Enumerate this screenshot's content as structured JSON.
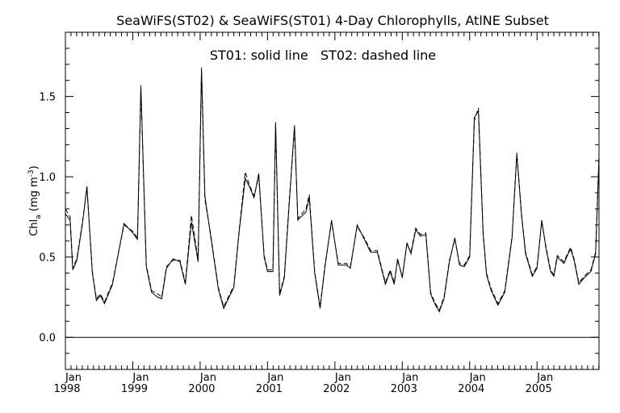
{
  "chart_data": {
    "type": "line",
    "title": "SeaWiFS(ST02) & SeaWiFS(ST01) 4-Day Chlorophylls, AtlNE Subset",
    "annotation": "ST01: solid line   ST02: dashed line",
    "ylabel": {
      "base": "Chl",
      "sub": "a",
      "mid": " (mg m",
      "sup": "-3",
      "end": ")"
    },
    "xlim": [
      1998.0,
      2005.92
    ],
    "ylim": [
      -0.2,
      1.9
    ],
    "yticks": [
      0.0,
      0.5,
      1.0,
      1.5
    ],
    "ytick_labels": [
      "0.0",
      "0.5",
      "1.0",
      "1.5"
    ],
    "xticks": [
      1998.0,
      1999.0,
      2000.0,
      2001.0,
      2002.0,
      2003.0,
      2004.0,
      2005.0
    ],
    "xtick_month_label": "Jan",
    "xtick_year_labels": [
      "1998",
      "1999",
      "2000",
      "2001",
      "2002",
      "2003",
      "2004",
      "2005"
    ],
    "reference_line_y": 0.0,
    "series": [
      {
        "name": "ST01",
        "style": "solid",
        "color": "#000000",
        "x": [
          1998.0,
          1998.07,
          1998.11,
          1998.17,
          1998.25,
          1998.32,
          1998.4,
          1998.46,
          1998.52,
          1998.58,
          1998.7,
          1998.87,
          1999.0,
          1999.07,
          1999.12,
          1999.2,
          1999.28,
          1999.37,
          1999.43,
          1999.5,
          1999.6,
          1999.7,
          1999.78,
          1999.87,
          1999.97,
          2000.02,
          2000.07,
          2000.15,
          2000.27,
          2000.35,
          2000.43,
          2000.5,
          2000.58,
          2000.67,
          2000.73,
          2000.8,
          2000.87,
          2000.95,
          2001.0,
          2001.08,
          2001.12,
          2001.18,
          2001.25,
          2001.32,
          2001.4,
          2001.45,
          2001.57,
          2001.62,
          2001.7,
          2001.78,
          2001.85,
          2001.95,
          2002.05,
          2002.17,
          2002.23,
          2002.33,
          2002.45,
          2002.53,
          2002.63,
          2002.75,
          2002.82,
          2002.88,
          2002.93,
          2003.0,
          2003.07,
          2003.13,
          2003.2,
          2003.27,
          2003.35,
          2003.42,
          2003.48,
          2003.55,
          2003.62,
          2003.7,
          2003.78,
          2003.85,
          2003.92,
          2004.0,
          2004.07,
          2004.13,
          2004.2,
          2004.25,
          2004.32,
          2004.42,
          2004.52,
          2004.63,
          2004.7,
          2004.77,
          2004.83,
          2004.93,
          2005.0,
          2005.07,
          2005.13,
          2005.2,
          2005.25,
          2005.3,
          2005.4,
          2005.45,
          2005.5,
          2005.55,
          2005.62,
          2005.7,
          2005.8,
          2005.87,
          2005.92
        ],
        "y": [
          0.77,
          0.73,
          0.42,
          0.48,
          0.7,
          0.94,
          0.4,
          0.23,
          0.26,
          0.21,
          0.33,
          0.71,
          0.65,
          0.61,
          1.57,
          0.44,
          0.28,
          0.25,
          0.24,
          0.43,
          0.49,
          0.47,
          0.33,
          0.72,
          0.47,
          1.68,
          0.88,
          0.65,
          0.3,
          0.18,
          0.25,
          0.31,
          0.66,
          0.99,
          0.94,
          0.87,
          1.02,
          0.5,
          0.41,
          0.41,
          1.34,
          0.26,
          0.37,
          0.82,
          1.32,
          0.73,
          0.78,
          0.87,
          0.4,
          0.18,
          0.43,
          0.73,
          0.45,
          0.45,
          0.43,
          0.7,
          0.6,
          0.53,
          0.53,
          0.33,
          0.41,
          0.33,
          0.49,
          0.37,
          0.59,
          0.52,
          0.67,
          0.63,
          0.64,
          0.27,
          0.21,
          0.16,
          0.24,
          0.47,
          0.62,
          0.45,
          0.44,
          0.5,
          1.37,
          1.41,
          0.65,
          0.39,
          0.29,
          0.2,
          0.28,
          0.62,
          1.14,
          0.76,
          0.52,
          0.38,
          0.43,
          0.73,
          0.56,
          0.41,
          0.38,
          0.5,
          0.46,
          0.51,
          0.55,
          0.48,
          0.33,
          0.37,
          0.41,
          0.52,
          1.12
        ]
      },
      {
        "name": "ST02",
        "style": "dashed",
        "color": "#000000",
        "x": [
          1998.0,
          1998.07,
          1998.11,
          1998.17,
          1998.25,
          1998.32,
          1998.4,
          1998.46,
          1998.52,
          1998.58,
          1998.7,
          1998.87,
          1999.0,
          1999.07,
          1999.12,
          1999.2,
          1999.28,
          1999.37,
          1999.43,
          1999.5,
          1999.6,
          1999.7,
          1999.78,
          1999.87,
          1999.97,
          2000.02,
          2000.07,
          2000.15,
          2000.27,
          2000.35,
          2000.43,
          2000.5,
          2000.58,
          2000.67,
          2000.73,
          2000.8,
          2000.87,
          2000.95,
          2001.0,
          2001.08,
          2001.12,
          2001.18,
          2001.25,
          2001.32,
          2001.4,
          2001.45,
          2001.57,
          2001.62,
          2001.7,
          2001.78,
          2001.85,
          2001.95,
          2002.05,
          2002.17,
          2002.23,
          2002.33,
          2002.45,
          2002.53,
          2002.63,
          2002.75,
          2002.82,
          2002.88,
          2002.93,
          2003.0,
          2003.07,
          2003.13,
          2003.2,
          2003.27,
          2003.35,
          2003.42,
          2003.48,
          2003.55,
          2003.62,
          2003.7,
          2003.78,
          2003.85,
          2003.92,
          2004.0,
          2004.07,
          2004.13,
          2004.2,
          2004.25,
          2004.32,
          2004.42,
          2004.52,
          2004.63,
          2004.7,
          2004.77,
          2004.83,
          2004.93,
          2005.0,
          2005.07,
          2005.13,
          2005.2,
          2005.25,
          2005.3,
          2005.4,
          2005.45,
          2005.5,
          2005.55,
          2005.62,
          2005.7,
          2005.8,
          2005.87,
          2005.92
        ],
        "y": [
          0.8,
          0.75,
          0.43,
          0.49,
          0.71,
          0.93,
          0.41,
          0.24,
          0.27,
          0.22,
          0.34,
          0.7,
          0.66,
          0.62,
          1.55,
          0.45,
          0.29,
          0.27,
          0.25,
          0.44,
          0.48,
          0.48,
          0.34,
          0.76,
          0.48,
          1.66,
          0.86,
          0.66,
          0.31,
          0.19,
          0.26,
          0.32,
          0.67,
          1.03,
          0.95,
          0.88,
          1.0,
          0.51,
          0.42,
          0.42,
          1.32,
          0.27,
          0.38,
          0.84,
          1.3,
          0.74,
          0.8,
          0.89,
          0.41,
          0.19,
          0.44,
          0.72,
          0.46,
          0.46,
          0.44,
          0.69,
          0.61,
          0.54,
          0.54,
          0.34,
          0.42,
          0.34,
          0.48,
          0.38,
          0.58,
          0.53,
          0.68,
          0.64,
          0.65,
          0.28,
          0.22,
          0.17,
          0.25,
          0.48,
          0.61,
          0.46,
          0.45,
          0.51,
          1.35,
          1.43,
          0.66,
          0.4,
          0.3,
          0.21,
          0.29,
          0.63,
          1.15,
          0.77,
          0.53,
          0.39,
          0.44,
          0.72,
          0.57,
          0.42,
          0.39,
          0.51,
          0.47,
          0.52,
          0.56,
          0.49,
          0.34,
          0.38,
          0.42,
          0.53,
          1.14
        ]
      }
    ]
  }
}
